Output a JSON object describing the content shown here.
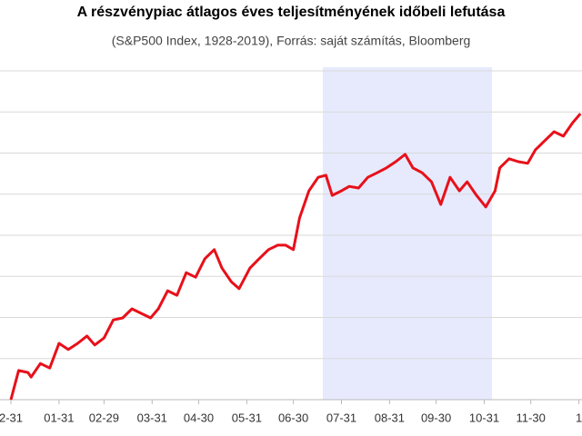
{
  "chart_data": {
    "type": "line",
    "title": "A részvénypiac átlagos éves teljesítményének időbeli lefutása",
    "subtitle": "(S&P500 Index, 1928-2019), Forrás: saját számítás, Bloomberg",
    "x": [
      0,
      5,
      11,
      13,
      19,
      25,
      31,
      37,
      43,
      49,
      54,
      60,
      66,
      72,
      78,
      84,
      90,
      95,
      101,
      107,
      113,
      119,
      125,
      131,
      136,
      142,
      147,
      154,
      160,
      166,
      172,
      177,
      182,
      186,
      192,
      198,
      203,
      207,
      213,
      218,
      224,
      230,
      236,
      242,
      248,
      254,
      259,
      265,
      271,
      277,
      283,
      289,
      294,
      300,
      306,
      312,
      315,
      321,
      327,
      333,
      338,
      344,
      350,
      356,
      362,
      367
    ],
    "series": [
      {
        "color": "#e8101a",
        "values": [
          0,
          0.71,
          0.66,
          0.55,
          0.88,
          0.77,
          1.37,
          1.22,
          1.37,
          1.55,
          1.33,
          1.5,
          1.94,
          1.99,
          2.21,
          2.1,
          1.99,
          2.21,
          2.65,
          2.54,
          3.09,
          2.98,
          3.43,
          3.65,
          3.2,
          2.87,
          2.7,
          3.2,
          3.43,
          3.65,
          3.76,
          3.76,
          3.65,
          4.42,
          5.08,
          5.41,
          5.46,
          4.97,
          5.08,
          5.19,
          5.15,
          5.41,
          5.52,
          5.64,
          5.79,
          5.97,
          5.64,
          5.52,
          5.3,
          4.75,
          5.41,
          5.08,
          5.3,
          4.97,
          4.69,
          5.08,
          5.64,
          5.86,
          5.79,
          5.75,
          6.08,
          6.3,
          6.52,
          6.41,
          6.74,
          6.96
        ]
      }
    ],
    "xlim": [
      0,
      368
    ],
    "xticks": [
      {
        "value": 0,
        "label": "2-31"
      },
      {
        "value": 31,
        "label": "01-31"
      },
      {
        "value": 60,
        "label": "02-29"
      },
      {
        "value": 91,
        "label": "03-31"
      },
      {
        "value": 121,
        "label": "04-30"
      },
      {
        "value": 152,
        "label": "05-31"
      },
      {
        "value": 182,
        "label": "06-30"
      },
      {
        "value": 213,
        "label": "07-31"
      },
      {
        "value": 244,
        "label": "08-31"
      },
      {
        "value": 274,
        "label": "09-30"
      },
      {
        "value": 305,
        "label": "10-31"
      },
      {
        "value": 335,
        "label": "11-30"
      },
      {
        "value": 366,
        "label": "1"
      }
    ],
    "ylim": [
      0,
      8
    ],
    "yticks": [
      0,
      1,
      2,
      3,
      4,
      5,
      6,
      7,
      8
    ],
    "show_ytick_labels": false,
    "grid": true,
    "highlight": {
      "x": [
        201,
        310
      ],
      "color": "#e6eafc"
    }
  }
}
